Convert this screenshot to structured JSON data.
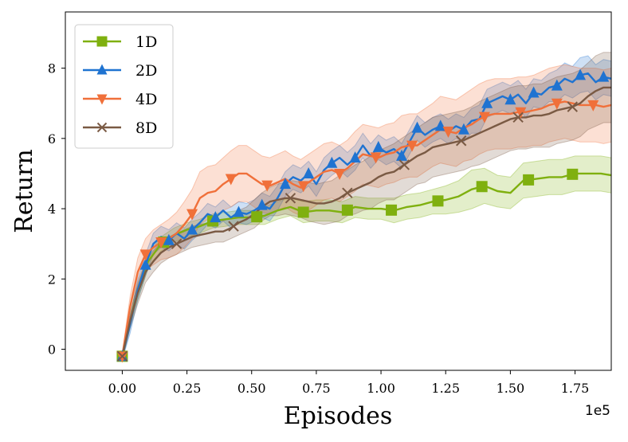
{
  "chart_data": {
    "type": "line",
    "title": "",
    "xlabel": "Episodes",
    "ylabel": "Return",
    "x_offset_label": "1e5",
    "xlim": [
      -0.22,
      1.89
    ],
    "ylim": [
      -0.6,
      9.6
    ],
    "x_ticks": [
      0.0,
      0.25,
      0.5,
      0.75,
      1.0,
      1.25,
      1.5,
      1.75
    ],
    "x_tick_labels": [
      "0.00",
      "0.25",
      "0.50",
      "0.75",
      "1.00",
      "1.25",
      "1.50",
      "1.75"
    ],
    "y_ticks": [
      0,
      2,
      4,
      6,
      8
    ],
    "y_tick_labels": [
      "0",
      "2",
      "4",
      "6",
      "8"
    ],
    "grid": false,
    "legend_position": "top-left",
    "series": [
      {
        "name": "1D",
        "color": "#7fb00f",
        "marker": "square",
        "x": [
          0,
          0.05,
          0.1,
          0.15,
          0.2,
          0.25,
          0.3,
          0.35,
          0.4,
          0.45,
          0.5,
          0.55,
          0.6,
          0.65,
          0.7,
          0.75,
          0.8,
          0.85,
          0.9,
          0.95,
          1.0,
          1.05,
          1.1,
          1.15,
          1.2,
          1.25,
          1.3,
          1.35,
          1.4,
          1.45,
          1.5,
          1.55,
          1.6,
          1.65,
          1.7,
          1.75,
          1.8,
          1.85,
          1.89
        ],
        "y": [
          -0.2,
          1.4,
          2.5,
          3.0,
          3.25,
          3.4,
          3.5,
          3.65,
          3.7,
          3.75,
          3.75,
          3.8,
          3.95,
          4.05,
          3.9,
          3.95,
          3.95,
          3.9,
          4.05,
          4.0,
          4.0,
          3.95,
          4.05,
          4.1,
          4.2,
          4.25,
          4.35,
          4.55,
          4.65,
          4.5,
          4.45,
          4.8,
          4.85,
          4.9,
          4.9,
          5.0,
          5.0,
          5.0,
          4.95
        ],
        "band": [
          0.1,
          0.2,
          0.2,
          0.2,
          0.2,
          0.2,
          0.2,
          0.2,
          0.2,
          0.2,
          0.2,
          0.25,
          0.25,
          0.25,
          0.3,
          0.3,
          0.3,
          0.3,
          0.3,
          0.3,
          0.3,
          0.35,
          0.35,
          0.35,
          0.35,
          0.4,
          0.45,
          0.55,
          0.5,
          0.45,
          0.45,
          0.5,
          0.5,
          0.5,
          0.5,
          0.5,
          0.5,
          0.5,
          0.5
        ],
        "marker_x": [
          0,
          0.16,
          0.35,
          0.52,
          0.7,
          0.87,
          1.04,
          1.22,
          1.39,
          1.57,
          1.74
        ]
      },
      {
        "name": "2D",
        "color": "#1f73d1",
        "marker": "triangle-up",
        "x": [
          0,
          0.03,
          0.06,
          0.09,
          0.12,
          0.15,
          0.18,
          0.21,
          0.24,
          0.27,
          0.3,
          0.33,
          0.36,
          0.39,
          0.42,
          0.45,
          0.48,
          0.51,
          0.54,
          0.57,
          0.6,
          0.63,
          0.66,
          0.69,
          0.72,
          0.75,
          0.78,
          0.81,
          0.84,
          0.87,
          0.9,
          0.93,
          0.96,
          0.99,
          1.02,
          1.05,
          1.08,
          1.11,
          1.14,
          1.17,
          1.2,
          1.23,
          1.26,
          1.29,
          1.32,
          1.35,
          1.38,
          1.41,
          1.44,
          1.47,
          1.5,
          1.53,
          1.56,
          1.59,
          1.62,
          1.65,
          1.68,
          1.71,
          1.74,
          1.77,
          1.8,
          1.83,
          1.86,
          1.89
        ],
        "y": [
          -0.2,
          0.7,
          1.7,
          2.4,
          3.0,
          3.2,
          3.1,
          3.3,
          3.15,
          3.4,
          3.6,
          3.85,
          3.75,
          3.95,
          3.75,
          3.9,
          3.85,
          3.95,
          4.1,
          4.0,
          4.3,
          4.7,
          4.9,
          4.8,
          5.0,
          4.7,
          5.1,
          5.3,
          5.45,
          5.25,
          5.45,
          5.8,
          5.5,
          5.75,
          5.6,
          5.7,
          5.5,
          5.9,
          6.3,
          6.1,
          6.25,
          6.35,
          6.2,
          6.35,
          6.25,
          6.5,
          6.55,
          7.0,
          7.1,
          7.2,
          7.1,
          7.25,
          7.0,
          7.3,
          7.25,
          7.45,
          7.5,
          7.7,
          7.6,
          7.8,
          7.85,
          7.6,
          7.75,
          7.7
        ],
        "band": [
          0.1,
          0.25,
          0.3,
          0.3,
          0.3,
          0.3,
          0.3,
          0.3,
          0.3,
          0.3,
          0.3,
          0.3,
          0.3,
          0.3,
          0.3,
          0.3,
          0.3,
          0.3,
          0.35,
          0.35,
          0.35,
          0.35,
          0.35,
          0.35,
          0.35,
          0.35,
          0.35,
          0.35,
          0.35,
          0.35,
          0.35,
          0.35,
          0.35,
          0.35,
          0.35,
          0.35,
          0.35,
          0.35,
          0.35,
          0.35,
          0.35,
          0.35,
          0.35,
          0.35,
          0.35,
          0.35,
          0.4,
          0.4,
          0.4,
          0.4,
          0.4,
          0.4,
          0.4,
          0.4,
          0.4,
          0.4,
          0.45,
          0.45,
          0.45,
          0.5,
          0.5,
          0.5,
          0.5,
          0.5
        ],
        "marker_x": [
          0,
          0.09,
          0.18,
          0.27,
          0.36,
          0.45,
          0.54,
          0.63,
          0.72,
          0.81,
          0.9,
          0.99,
          1.08,
          1.14,
          1.23,
          1.32,
          1.41,
          1.5,
          1.59,
          1.68,
          1.77,
          1.86
        ]
      },
      {
        "name": "4D",
        "color": "#f0703a",
        "marker": "triangle-down",
        "x": [
          0,
          0.03,
          0.06,
          0.09,
          0.12,
          0.15,
          0.18,
          0.21,
          0.24,
          0.27,
          0.3,
          0.33,
          0.36,
          0.39,
          0.42,
          0.45,
          0.48,
          0.51,
          0.54,
          0.57,
          0.6,
          0.63,
          0.66,
          0.69,
          0.72,
          0.75,
          0.78,
          0.81,
          0.84,
          0.87,
          0.9,
          0.93,
          0.96,
          0.99,
          1.02,
          1.05,
          1.08,
          1.11,
          1.14,
          1.17,
          1.2,
          1.23,
          1.26,
          1.29,
          1.32,
          1.35,
          1.38,
          1.41,
          1.44,
          1.47,
          1.5,
          1.53,
          1.56,
          1.59,
          1.62,
          1.65,
          1.68,
          1.71,
          1.74,
          1.77,
          1.8,
          1.83,
          1.86,
          1.89
        ],
        "y": [
          -0.2,
          1.2,
          2.2,
          2.7,
          2.9,
          3.05,
          3.15,
          3.3,
          3.55,
          3.85,
          4.3,
          4.45,
          4.5,
          4.7,
          4.85,
          5.0,
          5.0,
          4.85,
          4.7,
          4.65,
          4.75,
          4.85,
          4.7,
          4.6,
          4.75,
          4.9,
          5.05,
          5.1,
          5.0,
          5.15,
          5.35,
          5.55,
          5.5,
          5.45,
          5.55,
          5.6,
          5.75,
          5.8,
          5.8,
          5.95,
          6.1,
          6.25,
          6.2,
          6.15,
          6.3,
          6.4,
          6.55,
          6.65,
          6.7,
          6.7,
          6.7,
          6.75,
          6.75,
          6.8,
          6.85,
          6.95,
          7.0,
          7.05,
          7.0,
          6.95,
          6.95,
          6.95,
          6.9,
          6.95
        ],
        "band": [
          0.1,
          0.3,
          0.4,
          0.45,
          0.5,
          0.5,
          0.55,
          0.6,
          0.65,
          0.7,
          0.75,
          0.75,
          0.75,
          0.75,
          0.8,
          0.8,
          0.8,
          0.8,
          0.8,
          0.8,
          0.8,
          0.8,
          0.8,
          0.8,
          0.8,
          0.8,
          0.8,
          0.8,
          0.8,
          0.8,
          0.85,
          0.85,
          0.85,
          0.85,
          0.85,
          0.85,
          0.9,
          0.9,
          0.9,
          0.9,
          0.9,
          0.95,
          0.95,
          0.95,
          0.95,
          1.0,
          1.0,
          1.0,
          1.0,
          1.0,
          1.0,
          1.0,
          1.0,
          1.0,
          1.05,
          1.05,
          1.05,
          1.05,
          1.05,
          1.05,
          1.05,
          1.05,
          1.05,
          1.05
        ],
        "marker_x": [
          0,
          0.09,
          0.15,
          0.27,
          0.42,
          0.56,
          0.7,
          0.84,
          0.98,
          1.12,
          1.26,
          1.4,
          1.54,
          1.68,
          1.82
        ]
      },
      {
        "name": "8D",
        "color": "#7a5a44",
        "marker": "x",
        "x": [
          0,
          0.03,
          0.06,
          0.09,
          0.12,
          0.15,
          0.18,
          0.21,
          0.24,
          0.27,
          0.3,
          0.33,
          0.36,
          0.39,
          0.42,
          0.45,
          0.48,
          0.51,
          0.54,
          0.57,
          0.6,
          0.63,
          0.66,
          0.69,
          0.72,
          0.75,
          0.78,
          0.81,
          0.84,
          0.87,
          0.9,
          0.93,
          0.96,
          0.99,
          1.02,
          1.05,
          1.08,
          1.11,
          1.14,
          1.17,
          1.2,
          1.23,
          1.26,
          1.29,
          1.32,
          1.35,
          1.38,
          1.41,
          1.44,
          1.47,
          1.5,
          1.53,
          1.56,
          1.59,
          1.62,
          1.65,
          1.68,
          1.71,
          1.74,
          1.77,
          1.8,
          1.83,
          1.86,
          1.89
        ],
        "y": [
          -0.2,
          0.8,
          1.6,
          2.2,
          2.5,
          2.75,
          2.9,
          3.0,
          3.1,
          3.2,
          3.25,
          3.3,
          3.35,
          3.35,
          3.45,
          3.6,
          3.7,
          3.85,
          4.05,
          4.2,
          4.25,
          4.3,
          4.3,
          4.25,
          4.2,
          4.15,
          4.15,
          4.2,
          4.3,
          4.45,
          4.55,
          4.65,
          4.75,
          4.9,
          5.0,
          5.05,
          5.2,
          5.35,
          5.5,
          5.6,
          5.75,
          5.8,
          5.85,
          5.9,
          5.95,
          6.05,
          6.15,
          6.25,
          6.35,
          6.45,
          6.55,
          6.6,
          6.6,
          6.65,
          6.65,
          6.7,
          6.8,
          6.85,
          6.9,
          7.0,
          7.2,
          7.35,
          7.45,
          7.45
        ],
        "band": [
          0.1,
          0.2,
          0.3,
          0.3,
          0.3,
          0.3,
          0.3,
          0.3,
          0.3,
          0.3,
          0.3,
          0.3,
          0.3,
          0.3,
          0.3,
          0.35,
          0.35,
          0.4,
          0.4,
          0.4,
          0.45,
          0.45,
          0.5,
          0.5,
          0.55,
          0.55,
          0.6,
          0.6,
          0.65,
          0.65,
          0.7,
          0.7,
          0.75,
          0.75,
          0.75,
          0.8,
          0.8,
          0.8,
          0.8,
          0.85,
          0.85,
          0.85,
          0.85,
          0.85,
          0.85,
          0.85,
          0.9,
          0.9,
          0.9,
          0.9,
          0.9,
          0.9,
          0.9,
          0.9,
          0.9,
          0.95,
          0.95,
          0.95,
          0.95,
          0.95,
          0.95,
          1.0,
          1.0,
          1.0
        ],
        "marker_x": [
          0,
          0.21,
          0.43,
          0.65,
          0.87,
          1.09,
          1.31,
          1.53,
          1.74
        ]
      }
    ]
  }
}
